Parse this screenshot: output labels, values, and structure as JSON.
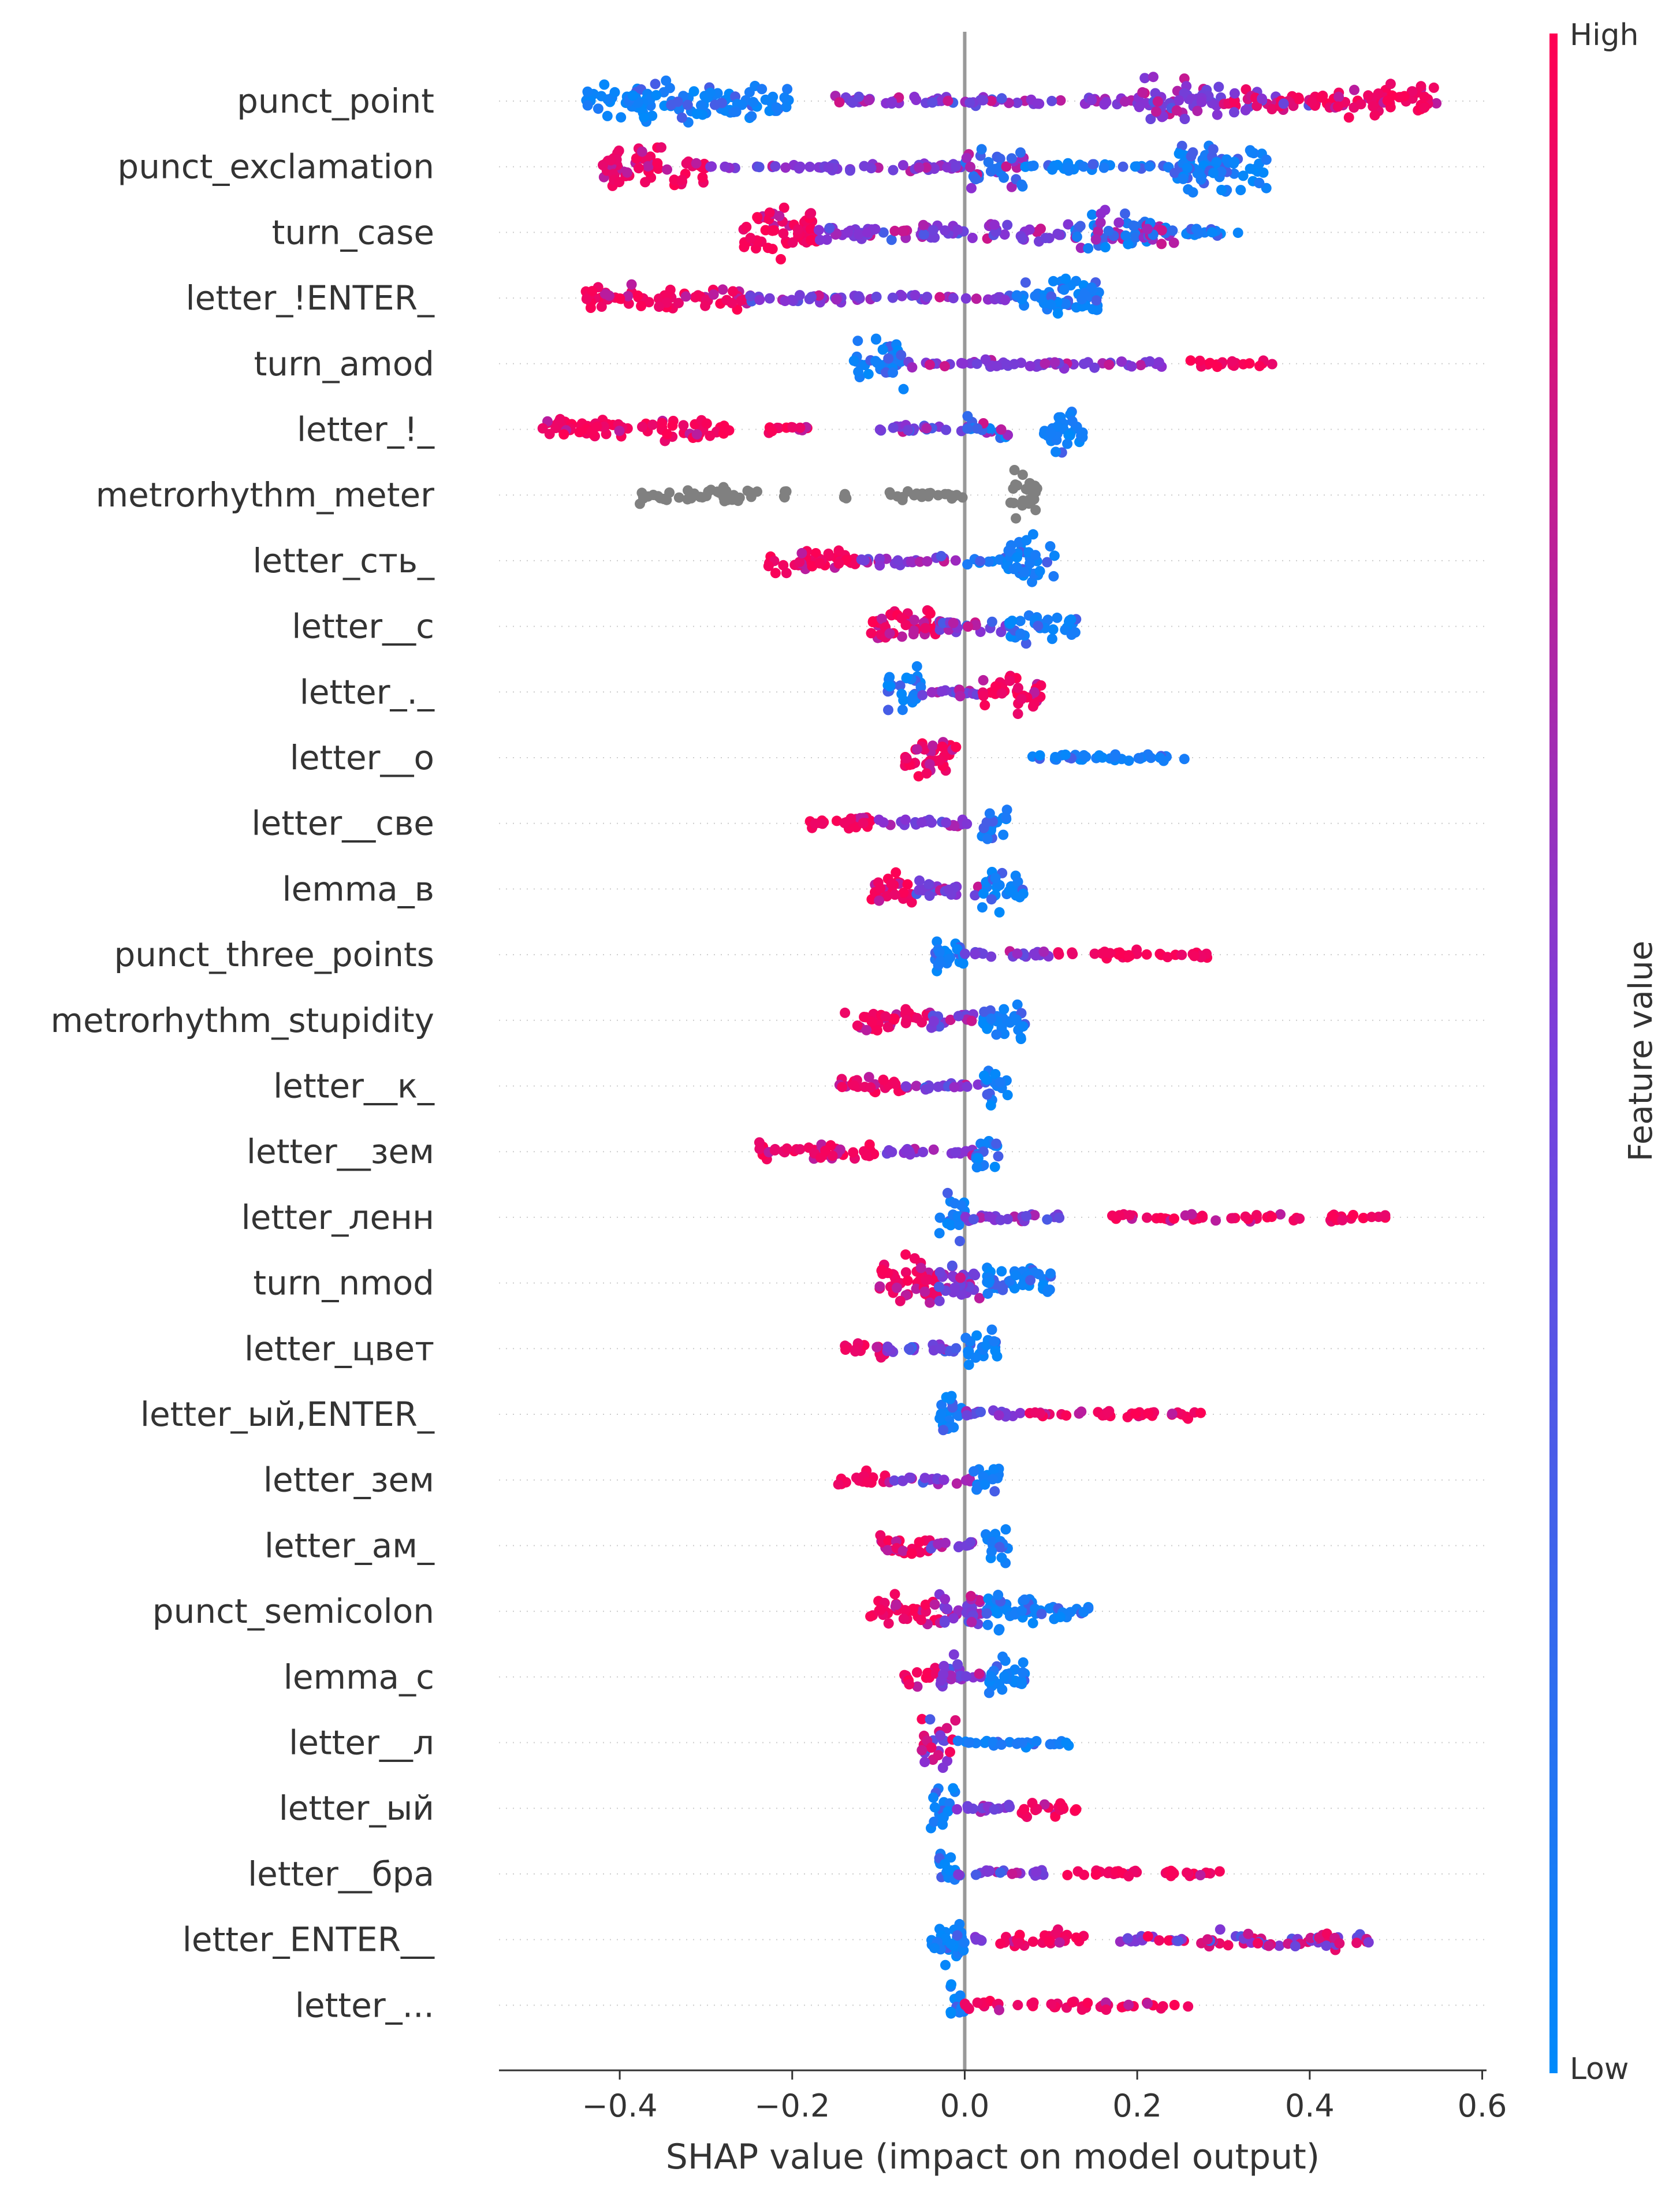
{
  "chart_data": {
    "type": "scatter",
    "subtype": "shap-beeswarm",
    "xlabel": "SHAP value (impact on model output)",
    "xlim": [
      -0.54,
      0.605
    ],
    "xticks": [
      -0.4,
      -0.2,
      0.0,
      0.2,
      0.4,
      0.6
    ],
    "xtick_labels": [
      "−0.4",
      "−0.2",
      "0.0",
      "0.2",
      "0.4",
      "0.6"
    ],
    "colorbar": {
      "label": "Feature value",
      "high": "High",
      "low": "Low"
    },
    "features": [
      {
        "name": "punct_point",
        "segments": [
          [
            -0.44,
            -0.2,
            "low",
            3
          ],
          [
            -0.15,
            -0.05,
            "mid",
            1
          ],
          [
            -0.05,
            0.2,
            "mid",
            1
          ],
          [
            0.2,
            0.3,
            "mid",
            3
          ],
          [
            0.3,
            0.4,
            "mixhigh",
            2
          ],
          [
            0.4,
            0.55,
            "high",
            2.5
          ]
        ]
      },
      {
        "name": "punct_exclamation",
        "segments": [
          [
            -0.42,
            -0.3,
            "high",
            3
          ],
          [
            -0.3,
            0.0,
            "mid",
            1
          ],
          [
            0.0,
            0.07,
            "mixlow",
            3
          ],
          [
            0.07,
            0.24,
            "low",
            1
          ],
          [
            0.24,
            0.35,
            "low",
            4
          ]
        ]
      },
      {
        "name": "turn_case",
        "segments": [
          [
            -0.26,
            -0.17,
            "high",
            3.5
          ],
          [
            -0.17,
            0.12,
            "mid",
            1.5
          ],
          [
            0.12,
            0.25,
            "mixlow",
            3
          ],
          [
            0.25,
            0.32,
            "low",
            1
          ]
        ]
      },
      {
        "name": "letter_!ENTER_",
        "segments": [
          [
            -0.44,
            -0.25,
            "high",
            2
          ],
          [
            -0.25,
            0.06,
            "mid",
            1
          ],
          [
            0.06,
            0.16,
            "low",
            3
          ]
        ]
      },
      {
        "name": "turn_amod",
        "segments": [
          [
            -0.13,
            -0.07,
            "low",
            3.5
          ],
          [
            -0.07,
            0.25,
            "mid",
            1
          ],
          [
            0.25,
            0.36,
            "high",
            1
          ]
        ]
      },
      {
        "name": "letter_!_",
        "segments": [
          [
            -0.49,
            -0.27,
            "high",
            2
          ],
          [
            -0.24,
            -0.18,
            "high",
            1
          ],
          [
            -0.1,
            0.0,
            "mid",
            1
          ],
          [
            0.0,
            0.05,
            "mixlow",
            2
          ],
          [
            0.09,
            0.14,
            "low",
            3.5
          ]
        ]
      },
      {
        "name": "metrorhythm_meter",
        "segments": [
          [
            -0.38,
            -0.24,
            "grey",
            1.5
          ],
          [
            -0.21,
            -0.21,
            "grey",
            1
          ],
          [
            -0.14,
            -0.14,
            "grey",
            1
          ],
          [
            -0.11,
            0.0,
            "grey",
            1
          ],
          [
            0.05,
            0.085,
            "grey",
            3.5
          ]
        ]
      },
      {
        "name": "letter_сть_",
        "segments": [
          [
            -0.23,
            -0.12,
            "high",
            2
          ],
          [
            -0.12,
            0.0,
            "mid",
            1
          ],
          [
            0.0,
            0.05,
            "low",
            1
          ],
          [
            0.05,
            0.11,
            "low",
            3.5
          ]
        ]
      },
      {
        "name": "letter__с",
        "segments": [
          [
            -0.11,
            -0.03,
            "high",
            3
          ],
          [
            -0.03,
            0.05,
            "mid",
            1.5
          ],
          [
            0.05,
            0.13,
            "low",
            2.5
          ]
        ]
      },
      {
        "name": "letter_._",
        "segments": [
          [
            -0.09,
            -0.05,
            "low",
            3.5
          ],
          [
            -0.05,
            0.02,
            "mid",
            1
          ],
          [
            0.02,
            0.09,
            "high",
            3
          ]
        ]
      },
      {
        "name": "letter__о",
        "segments": [
          [
            -0.07,
            -0.01,
            "high",
            3.5
          ],
          [
            0.06,
            0.26,
            "low",
            1
          ]
        ]
      },
      {
        "name": "letter__све",
        "segments": [
          [
            -0.18,
            -0.1,
            "high",
            1.5
          ],
          [
            -0.1,
            0.01,
            "mid",
            1
          ],
          [
            0.02,
            0.05,
            "low",
            3
          ]
        ]
      },
      {
        "name": "lemma_в",
        "segments": [
          [
            -0.11,
            -0.06,
            "high",
            2.5
          ],
          [
            -0.06,
            0.02,
            "mid",
            1.5
          ],
          [
            0.02,
            0.07,
            "low",
            3
          ]
        ]
      },
      {
        "name": "punct_three_points",
        "segments": [
          [
            -0.04,
            0.0,
            "low",
            3.5
          ],
          [
            0.0,
            0.1,
            "mid",
            1
          ],
          [
            0.1,
            0.29,
            "high",
            1
          ]
        ]
      },
      {
        "name": "metrorhythm_stupidity",
        "segments": [
          [
            -0.14,
            -0.04,
            "high",
            2
          ],
          [
            -0.04,
            0.02,
            "mid",
            1.5
          ],
          [
            0.02,
            0.07,
            "low",
            3.5
          ]
        ]
      },
      {
        "name": "letter__к_",
        "segments": [
          [
            -0.15,
            -0.07,
            "high",
            1.5
          ],
          [
            -0.07,
            0.02,
            "mid",
            1
          ],
          [
            0.02,
            0.05,
            "low",
            3
          ]
        ]
      },
      {
        "name": "letter__зем",
        "segments": [
          [
            -0.24,
            -0.1,
            "high",
            1.5
          ],
          [
            -0.1,
            0.01,
            "mid",
            1
          ],
          [
            0.01,
            0.04,
            "low",
            3
          ]
        ]
      },
      {
        "name": "letter_ленн",
        "segments": [
          [
            -0.03,
            0.0,
            "low",
            3.5
          ],
          [
            0.0,
            0.12,
            "mid",
            1
          ],
          [
            0.17,
            0.49,
            "high",
            1
          ]
        ]
      },
      {
        "name": "turn_nmod",
        "segments": [
          [
            -0.1,
            -0.03,
            "high",
            3.5
          ],
          [
            -0.03,
            0.02,
            "mid",
            3
          ],
          [
            0.02,
            0.1,
            "low",
            3
          ]
        ]
      },
      {
        "name": "letter_цвет",
        "segments": [
          [
            -0.14,
            -0.09,
            "high",
            1.5
          ],
          [
            -0.09,
            0.0,
            "mid",
            1
          ],
          [
            0.0,
            0.04,
            "low",
            3
          ]
        ]
      },
      {
        "name": "letter_ый,ENTER_",
        "segments": [
          [
            -0.03,
            0.0,
            "low",
            3.5
          ],
          [
            0.0,
            0.07,
            "mid",
            1
          ],
          [
            0.07,
            0.28,
            "high",
            1
          ]
        ]
      },
      {
        "name": "letter_зем",
        "segments": [
          [
            -0.15,
            -0.09,
            "high",
            1.5
          ],
          [
            -0.09,
            0.01,
            "mid",
            1
          ],
          [
            0.01,
            0.04,
            "low",
            3
          ]
        ]
      },
      {
        "name": "letter_ам_",
        "segments": [
          [
            -0.1,
            -0.04,
            "high",
            2
          ],
          [
            -0.04,
            0.02,
            "mid",
            1
          ],
          [
            0.02,
            0.05,
            "low",
            3
          ]
        ]
      },
      {
        "name": "punct_semicolon",
        "segments": [
          [
            -0.11,
            -0.03,
            "high",
            2.5
          ],
          [
            -0.03,
            0.02,
            "mid",
            3
          ],
          [
            0.02,
            0.08,
            "low",
            3
          ],
          [
            0.08,
            0.15,
            "low",
            1.5
          ]
        ]
      },
      {
        "name": "lemma_с",
        "segments": [
          [
            -0.07,
            -0.03,
            "high",
            2
          ],
          [
            -0.03,
            0.0,
            "mid",
            3
          ],
          [
            0.0,
            0.02,
            "mid",
            1
          ],
          [
            0.02,
            0.07,
            "low",
            3
          ]
        ]
      },
      {
        "name": "letter__л",
        "segments": [
          [
            -0.05,
            -0.01,
            "mixhigh",
            3.5
          ],
          [
            -0.01,
            0.13,
            "low",
            1
          ]
        ]
      },
      {
        "name": "letter_ый",
        "segments": [
          [
            -0.04,
            -0.01,
            "low",
            3.5
          ],
          [
            -0.01,
            0.06,
            "mid",
            1
          ],
          [
            0.06,
            0.13,
            "high",
            1.5
          ]
        ]
      },
      {
        "name": "letter__бра",
        "segments": [
          [
            -0.03,
            -0.01,
            "low",
            3.5
          ],
          [
            -0.01,
            0.1,
            "mid",
            1
          ],
          [
            0.1,
            0.3,
            "high",
            1
          ]
        ]
      },
      {
        "name": "letter_ENTER__",
        "segments": [
          [
            -0.04,
            0.0,
            "low",
            4
          ],
          [
            0.01,
            0.02,
            "mid",
            1
          ],
          [
            0.04,
            0.14,
            "high",
            1.5
          ],
          [
            0.18,
            0.2,
            "mid",
            1
          ],
          [
            0.2,
            0.47,
            "mixhigh",
            1.5
          ]
        ]
      },
      {
        "name": "letter_...",
        "segments": [
          [
            -0.02,
            0.0,
            "low",
            3
          ],
          [
            0.0,
            0.08,
            "high",
            1
          ],
          [
            0.1,
            0.27,
            "high",
            1
          ]
        ]
      }
    ]
  },
  "palette": {
    "low": "#008afb",
    "high": "#ff0052",
    "mid": "#8b2fd1",
    "grey": "#808080"
  }
}
